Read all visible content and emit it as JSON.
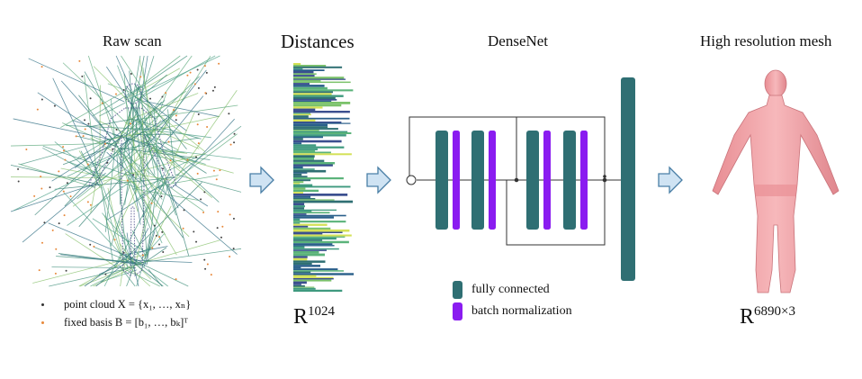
{
  "titles": {
    "raw_scan": "Raw scan",
    "distances": "Distances",
    "densenet": "DenseNet",
    "mesh": "High resolution mesh"
  },
  "dims": {
    "distances_base": "R",
    "distances_exp": "1024",
    "mesh_base": "R",
    "mesh_exp": "6890×3"
  },
  "legend_scan": [
    {
      "text": "point cloud X = {x₁, …, xₙ}",
      "color": "#333333"
    },
    {
      "text": "fixed basis B = [b₁, …, bₖ]ᵀ",
      "color": "#e8883a"
    }
  ],
  "legend_net": [
    {
      "text": "fully connected",
      "color": "#2f6f73"
    },
    {
      "text": "batch normalization",
      "color": "#8a1cf0"
    }
  ],
  "colors": {
    "fc": "#2f6f73",
    "bn": "#8a1cf0",
    "arrow_fill": "#cfe3f3",
    "arrow_stroke": "#4a7fa6",
    "mesh": "#f4a9ad"
  }
}
